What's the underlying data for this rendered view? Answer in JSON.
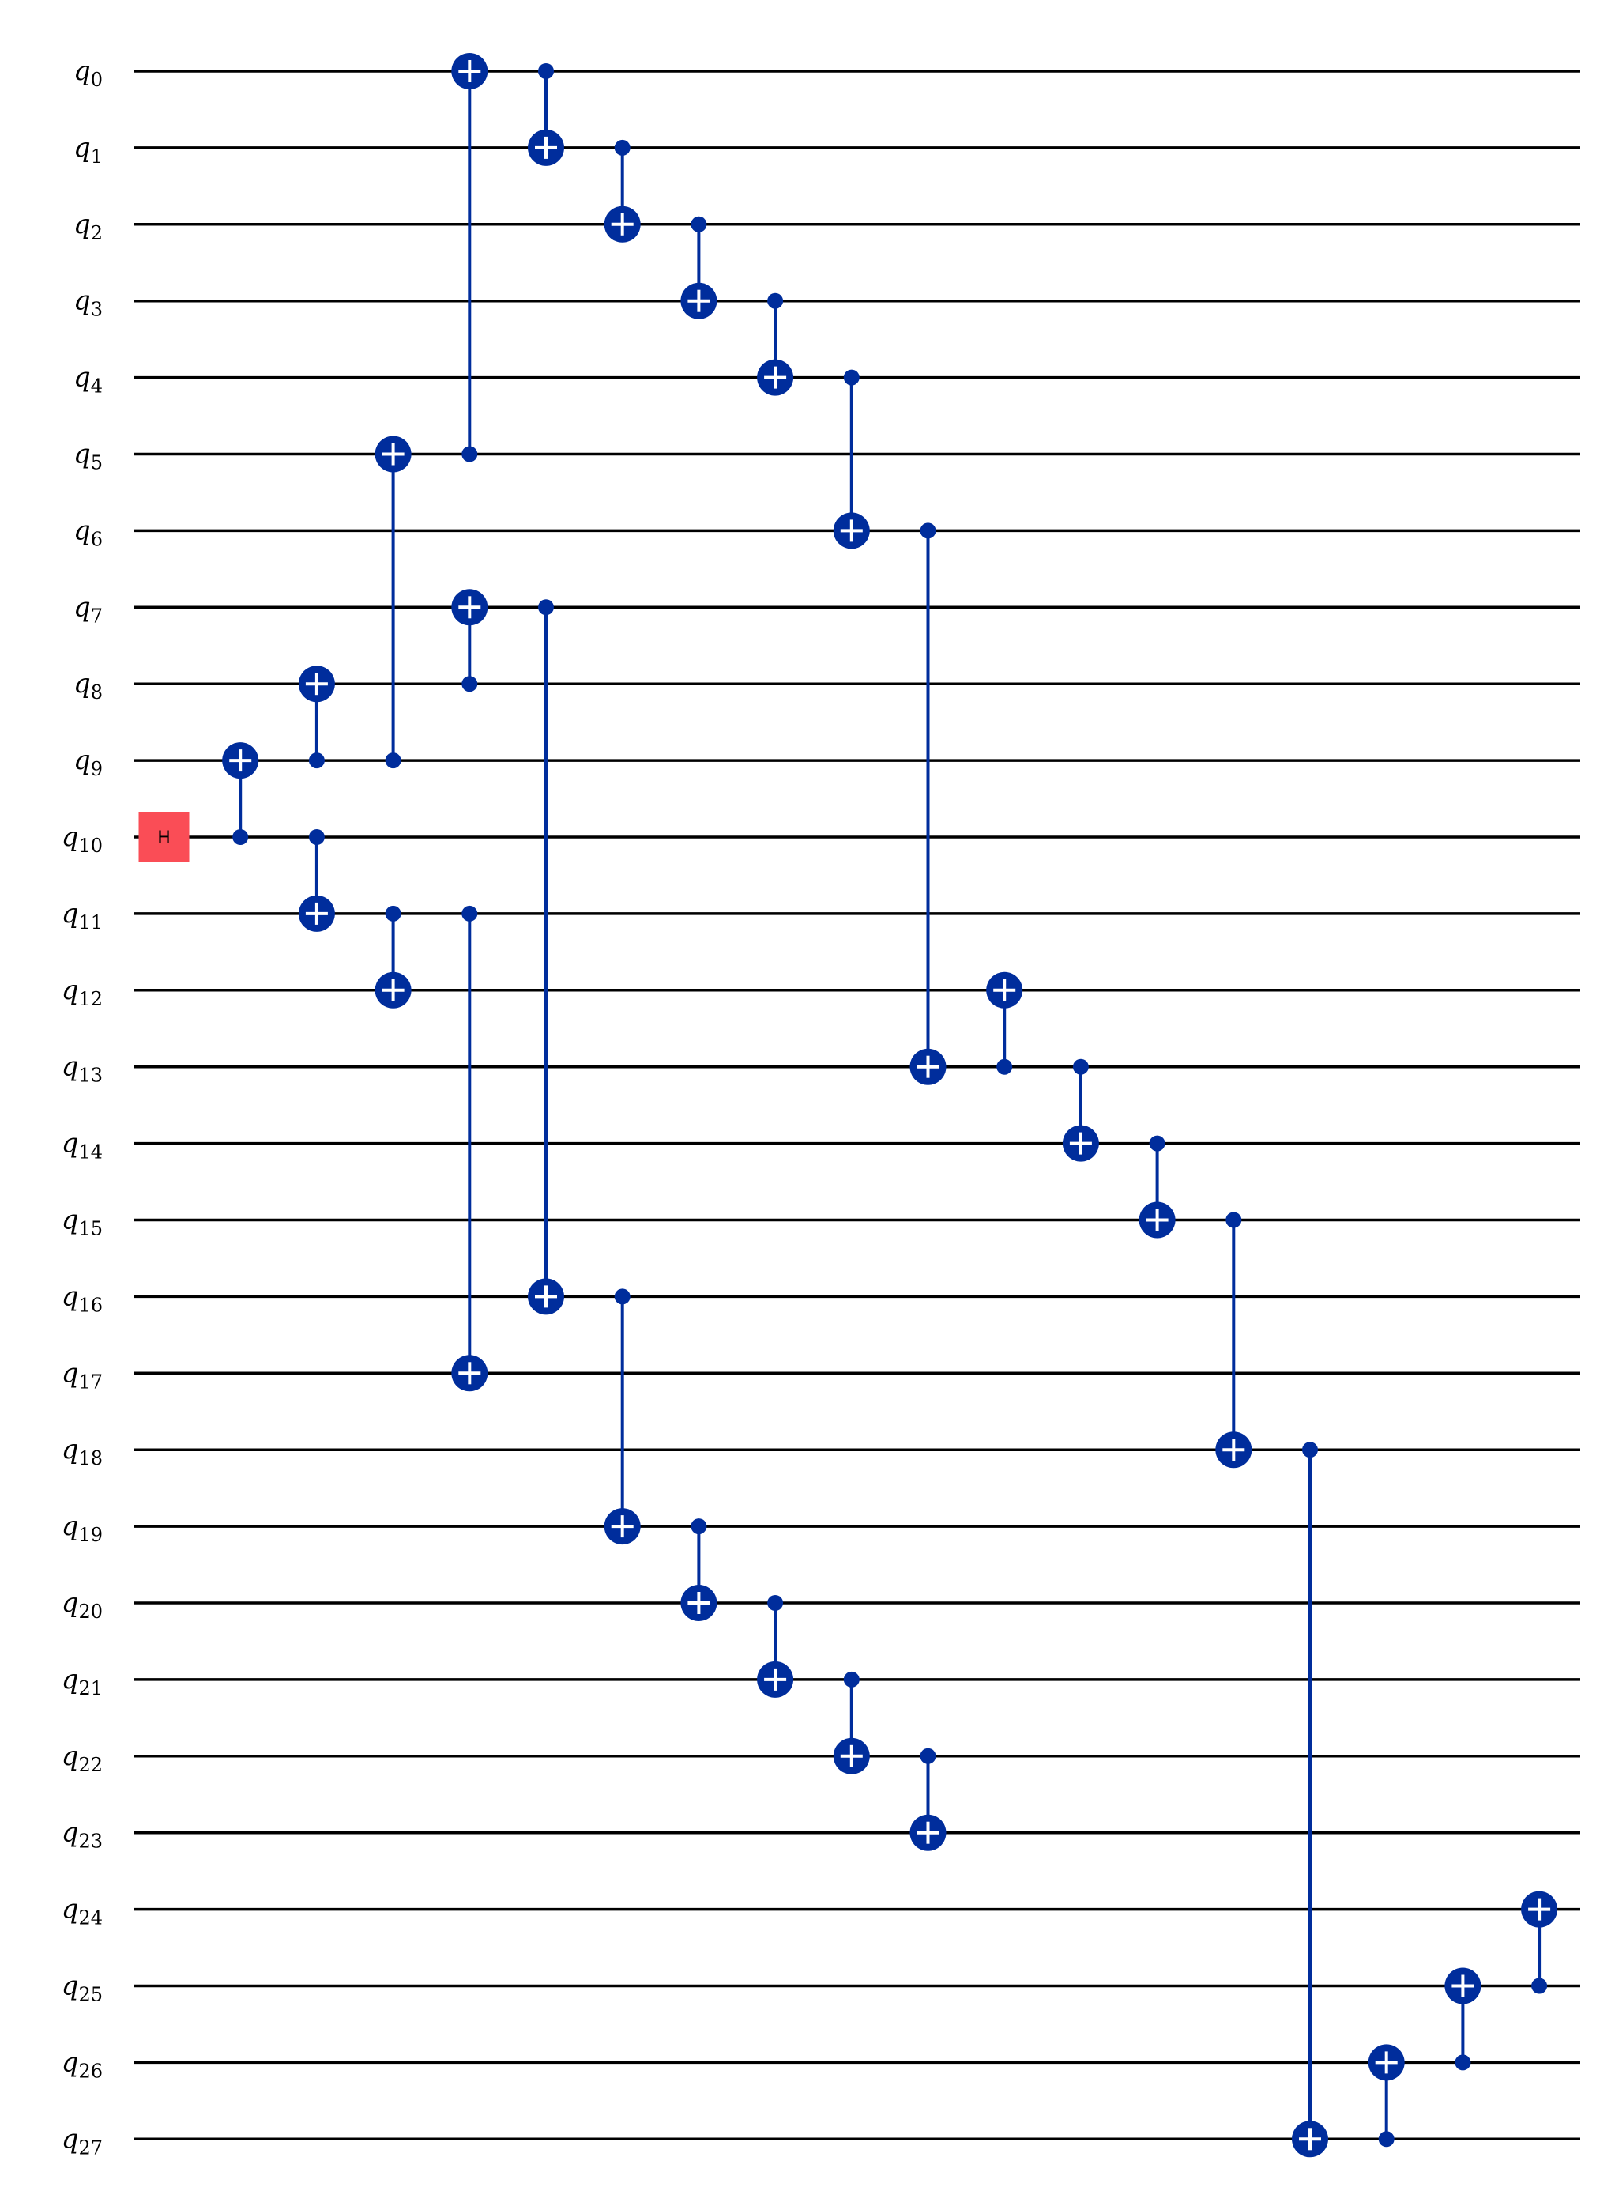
{
  "circuit": {
    "qubit_count": 28,
    "qubit_prefix": "q",
    "colors": {
      "wire": "#000000",
      "cnot": "#002d9c",
      "h_gate": "#fa4d56",
      "h_text": "#000000",
      "target_plus": "#ffffff"
    },
    "single_qubit_gates": [
      {
        "label": "H",
        "qubit": 10,
        "column": 0
      }
    ],
    "cnots": [
      {
        "column": 1,
        "control": 10,
        "target": 9
      },
      {
        "column": 2,
        "control": 9,
        "target": 8
      },
      {
        "column": 2,
        "control": 10,
        "target": 11
      },
      {
        "column": 3,
        "control": 9,
        "target": 5
      },
      {
        "column": 3,
        "control": 11,
        "target": 12
      },
      {
        "column": 4,
        "control": 5,
        "target": 0
      },
      {
        "column": 4,
        "control": 8,
        "target": 7
      },
      {
        "column": 4,
        "control": 11,
        "target": 17
      },
      {
        "column": 5,
        "control": 0,
        "target": 1
      },
      {
        "column": 5,
        "control": 7,
        "target": 16
      },
      {
        "column": 6,
        "control": 1,
        "target": 2
      },
      {
        "column": 6,
        "control": 16,
        "target": 19
      },
      {
        "column": 7,
        "control": 2,
        "target": 3
      },
      {
        "column": 7,
        "control": 19,
        "target": 20
      },
      {
        "column": 8,
        "control": 3,
        "target": 4
      },
      {
        "column": 8,
        "control": 20,
        "target": 21
      },
      {
        "column": 9,
        "control": 4,
        "target": 6
      },
      {
        "column": 9,
        "control": 21,
        "target": 22
      },
      {
        "column": 10,
        "control": 6,
        "target": 13
      },
      {
        "column": 10,
        "control": 22,
        "target": 23
      },
      {
        "column": 11,
        "control": 13,
        "target": 12
      },
      {
        "column": 12,
        "control": 13,
        "target": 14
      },
      {
        "column": 13,
        "control": 14,
        "target": 15
      },
      {
        "column": 14,
        "control": 15,
        "target": 18
      },
      {
        "column": 15,
        "control": 18,
        "target": 27
      },
      {
        "column": 16,
        "control": 27,
        "target": 26
      },
      {
        "column": 17,
        "control": 26,
        "target": 25
      },
      {
        "column": 18,
        "control": 25,
        "target": 24
      }
    ]
  }
}
